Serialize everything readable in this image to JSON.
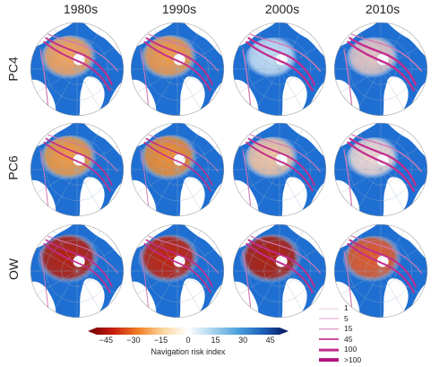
{
  "columns": [
    "1980s",
    "1990s",
    "2000s",
    "2010s"
  ],
  "rows": [
    "PC4",
    "PC6",
    "OW"
  ],
  "colorbar": {
    "label": "Navigation risk index",
    "ticks": [
      "−45",
      "−30",
      "−15",
      "0",
      "15",
      "30",
      "45"
    ],
    "range": [
      -55,
      55
    ],
    "colors": [
      "#6b0000",
      "#c81c0c",
      "#f07d24",
      "#fcd6a0",
      "#ffffff",
      "#a7d3ee",
      "#4a9fdc",
      "#1a5fb8",
      "#08105a"
    ]
  },
  "legend": {
    "title": "",
    "items": [
      {
        "label": "1",
        "color": "#e9c6dd"
      },
      {
        "label": "5",
        "color": "#dea1c8"
      },
      {
        "label": "15",
        "color": "#d27ab5"
      },
      {
        "label": "45",
        "color": "#c94f9f"
      },
      {
        "label": "100",
        "color": "#c22d8d"
      },
      {
        "label": ">100",
        "color": "#b0127d"
      }
    ]
  },
  "panels": [
    [
      {
        "interior": "#f8a45a",
        "risk": 0.45,
        "routes": 0.8
      },
      {
        "interior": "#f59a47",
        "risk": 0.5,
        "routes": 0.7
      },
      {
        "interior": "#c6def2",
        "risk": 0.1,
        "routes": 0.9
      },
      {
        "interior": "#e7c7c2",
        "risk": 0.15,
        "routes": 1.0
      }
    ],
    [
      {
        "interior": "#f39a3f",
        "risk": 0.55,
        "routes": 0.6
      },
      {
        "interior": "#ef8d32",
        "risk": 0.6,
        "routes": 0.5
      },
      {
        "interior": "#f4c6a3",
        "risk": 0.3,
        "routes": 0.7
      },
      {
        "interior": "#f2d9d2",
        "risk": 0.2,
        "routes": 0.9
      }
    ],
    [
      {
        "interior": "#b6210f",
        "risk": 0.95,
        "routes": 0.6
      },
      {
        "interior": "#c1250f",
        "risk": 0.9,
        "routes": 0.6
      },
      {
        "interior": "#b1200d",
        "risk": 0.95,
        "routes": 0.8
      },
      {
        "interior": "#e35a2a",
        "risk": 0.7,
        "routes": 0.8
      }
    ]
  ]
}
